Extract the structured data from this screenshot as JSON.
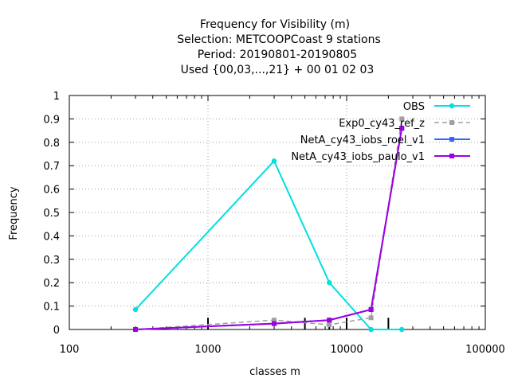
{
  "chart_data": {
    "type": "line",
    "title_lines": [
      "Frequency  for Visibility (m)",
      "Selection: METCOOPCoast      9 stations",
      "Period: 20190801-20190805",
      "Used {00,03,...,21} + 00 01 02 03"
    ],
    "xlabel": "classes m",
    "ylabel": "Frequency",
    "x_scale": "log",
    "xlim": [
      100,
      100000
    ],
    "ylim": [
      0,
      1
    ],
    "grid": true,
    "legend_position": "top-right",
    "x_ticks": [
      {
        "value": 100,
        "label": "100"
      },
      {
        "value": 1000,
        "label": "1000"
      },
      {
        "value": 10000,
        "label": "10000"
      },
      {
        "value": 100000,
        "label": "100000"
      }
    ],
    "y_ticks": [
      {
        "value": 0,
        "label": "0"
      },
      {
        "value": 0.1,
        "label": "0.1"
      },
      {
        "value": 0.2,
        "label": "0.2"
      },
      {
        "value": 0.3,
        "label": "0.3"
      },
      {
        "value": 0.4,
        "label": "0.4"
      },
      {
        "value": 0.5,
        "label": "0.5"
      },
      {
        "value": 0.6,
        "label": "0.6"
      },
      {
        "value": 0.7,
        "label": "0.7"
      },
      {
        "value": 0.8,
        "label": "0.8"
      },
      {
        "value": 0.9,
        "label": "0.9"
      },
      {
        "value": 1,
        "label": "1"
      }
    ],
    "class_boundaries": [
      1000,
      5000,
      7500,
      10000,
      20000
    ],
    "boundary_tick_height": 0.05,
    "series": [
      {
        "name": "OBS",
        "color": "#00e0e0",
        "dashed": false,
        "marker": "circle",
        "x": [
          300,
          3000,
          7500,
          15000,
          25000
        ],
        "y": [
          0.085,
          0.72,
          0.2,
          0.0,
          0.0
        ]
      },
      {
        "name": "Exp0_cy43_ref_z",
        "color": "#a0a0a0",
        "dashed": true,
        "marker": "square",
        "x": [
          300,
          3000,
          7500,
          15000,
          25000
        ],
        "y": [
          0.0,
          0.04,
          0.02,
          0.05,
          0.9
        ]
      },
      {
        "name": "NetA_cy43_iobs_roel_v1",
        "color": "#3366ff",
        "dashed": false,
        "marker": "square",
        "x": [
          300,
          3000,
          7500,
          15000,
          25000
        ],
        "y": [
          0.0,
          0.025,
          0.04,
          0.085,
          0.86
        ]
      },
      {
        "name": "NetA_cy43_iobs_paulo_v1",
        "color": "#a000e0",
        "dashed": false,
        "marker": "square",
        "x": [
          300,
          3000,
          7500,
          15000,
          25000
        ],
        "y": [
          0.0,
          0.025,
          0.04,
          0.085,
          0.86
        ]
      }
    ]
  }
}
